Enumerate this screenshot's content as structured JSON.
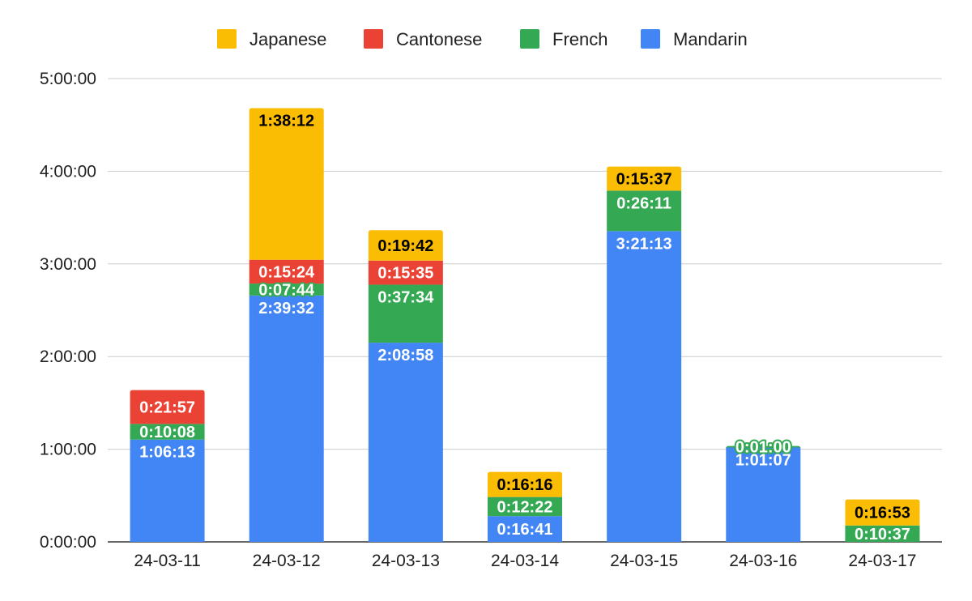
{
  "chart_data": {
    "type": "bar",
    "stacked": true,
    "categories": [
      "24-03-11",
      "24-03-12",
      "24-03-13",
      "24-03-14",
      "24-03-15",
      "24-03-16",
      "24-03-17"
    ],
    "series": [
      {
        "name": "Mandarin",
        "color": "#4285f4",
        "label_color": "#ffffff",
        "values": [
          "1:06:13",
          "2:39:32",
          "2:08:58",
          "0:16:41",
          "3:21:13",
          "1:01:07",
          null
        ]
      },
      {
        "name": "French",
        "color": "#34a853",
        "label_color": "#ffffff",
        "values": [
          "0:10:08",
          "0:07:44",
          "0:37:34",
          "0:12:22",
          "0:26:11",
          "0:01:00",
          "0:10:37"
        ]
      },
      {
        "name": "Cantonese",
        "color": "#ea4335",
        "label_color": "#ffffff",
        "values": [
          "0:21:57",
          "0:15:24",
          "0:15:35",
          null,
          null,
          null,
          null
        ]
      },
      {
        "name": "Japanese",
        "color": "#fbbc04",
        "label_color": "#000000",
        "values": [
          null,
          "1:38:12",
          "0:19:42",
          "0:16:16",
          "0:15:37",
          null,
          "0:16:53"
        ]
      }
    ],
    "legend_order": [
      "Japanese",
      "Cantonese",
      "French",
      "Mandarin"
    ],
    "legend_position": "top",
    "y_ticks": [
      "0:00:00",
      "1:00:00",
      "2:00:00",
      "3:00:00",
      "4:00:00",
      "5:00:00"
    ],
    "ylim": [
      "0:00:00",
      "5:00:00"
    ],
    "grid": true,
    "title": "",
    "xlabel": "",
    "ylabel": ""
  }
}
